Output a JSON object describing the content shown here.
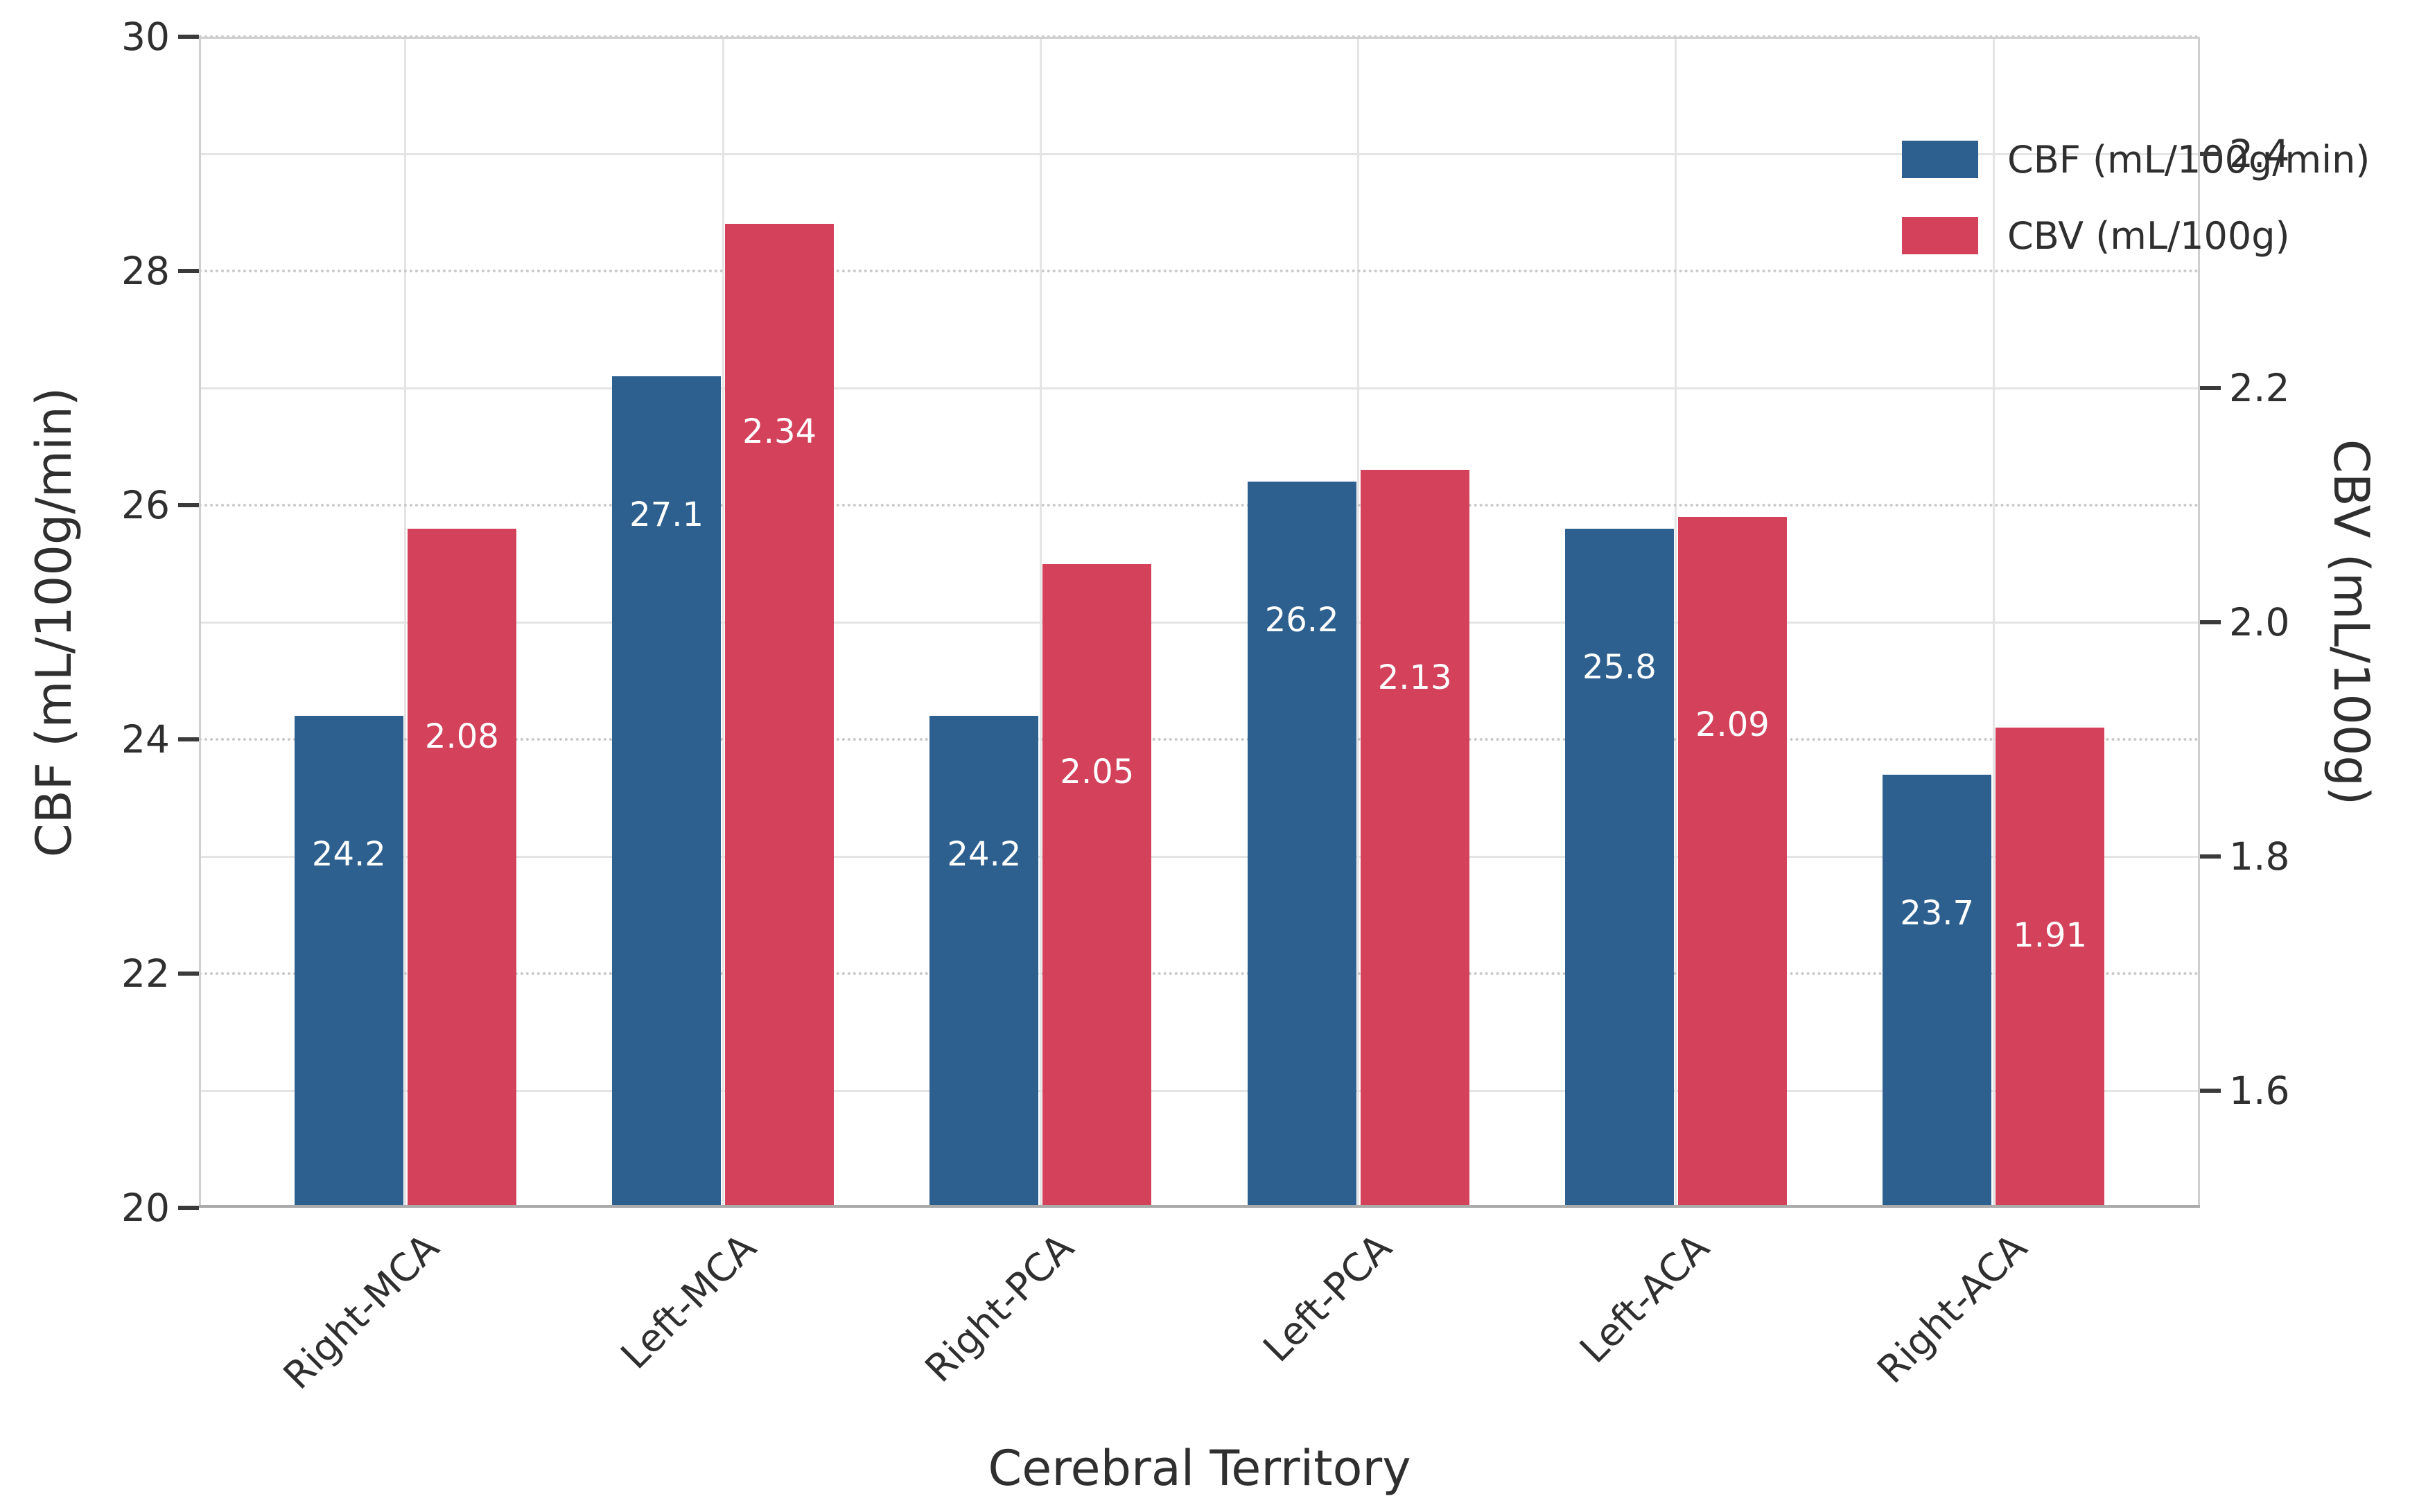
{
  "figure": {
    "background": "#ffffff"
  },
  "chart_data": {
    "type": "bar",
    "title": "",
    "categories": [
      "Right-MCA",
      "Left-MCA",
      "Right-PCA",
      "Left-PCA",
      "Left-ACA",
      "Right-ACA"
    ],
    "series": [
      {
        "name": "CBF (mL/100g/min)",
        "axis": "left",
        "color": "#2d608f",
        "values": [
          24.2,
          27.1,
          24.2,
          26.2,
          25.8,
          23.7
        ],
        "labels": [
          "24.2",
          "27.1",
          "24.2",
          "26.2",
          "25.8",
          "23.7"
        ],
        "label_color": "#ffffff"
      },
      {
        "name": "CBV (mL/100g)",
        "axis": "right",
        "color": "#d4415a",
        "values": [
          2.08,
          2.34,
          2.05,
          2.13,
          2.09,
          1.91
        ],
        "labels": [
          "2.08",
          "2.34",
          "2.05",
          "2.13",
          "2.09",
          "1.91"
        ],
        "label_color": "#ffffff"
      }
    ],
    "xlabel": "Cerebral Territory",
    "axes": {
      "left": {
        "label": "CBF (mL/100g/min)",
        "lim": [
          20,
          30
        ],
        "ticks": [
          {
            "v": 20,
            "t": "20"
          },
          {
            "v": 22,
            "t": "22"
          },
          {
            "v": 24,
            "t": "24"
          },
          {
            "v": 26,
            "t": "26"
          },
          {
            "v": 28,
            "t": "28"
          },
          {
            "v": 30,
            "t": "30"
          }
        ]
      },
      "right": {
        "label": "CBV (mL/100g)",
        "lim": [
          1.5,
          2.5
        ],
        "ticks": [
          {
            "v": 1.6,
            "t": "1.6"
          },
          {
            "v": 1.8,
            "t": "1.8"
          },
          {
            "v": 2.0,
            "t": "2.0"
          },
          {
            "v": 2.2,
            "t": "2.2"
          },
          {
            "v": 2.4,
            "t": "2.4"
          }
        ]
      }
    },
    "legend": {
      "position": "top-right",
      "entries": [
        "CBF (mL/100g/min)",
        "CBV (mL/100g)"
      ]
    },
    "grid": {
      "horizontal_left_axis_style": "dotted",
      "horizontal_right_axis_style": "solid",
      "vertical": true
    }
  },
  "colors": {
    "text": "#2f2f2f",
    "grid_solid": "#e4e4e4",
    "grid_dotted": "#c9c9c9",
    "spine": "#cfcfcf",
    "spine_bottom": "#ababab",
    "tick_mark": "#3a3a3a"
  }
}
